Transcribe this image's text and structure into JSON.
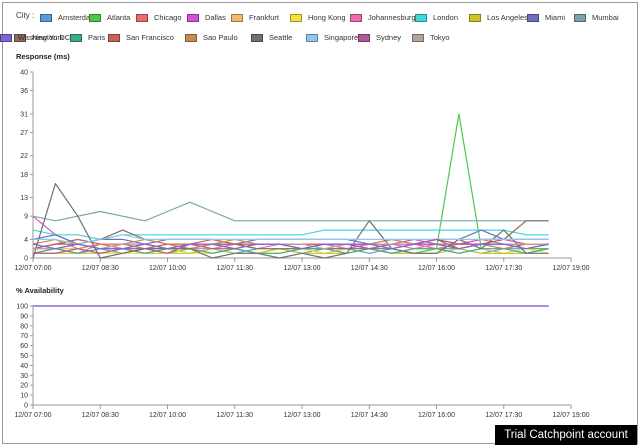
{
  "legend": {
    "label": "City :",
    "items": [
      {
        "name": "Amsterdam",
        "color": "#5b9bd5"
      },
      {
        "name": "Atlanta",
        "color": "#4cc94c"
      },
      {
        "name": "Chicago",
        "color": "#e86a6a"
      },
      {
        "name": "Dallas",
        "color": "#d24fcf"
      },
      {
        "name": "Frankfurt",
        "color": "#f2b86a"
      },
      {
        "name": "Hong Kong",
        "color": "#f5e33a"
      },
      {
        "name": "Johannesburg",
        "color": "#f06ab0"
      },
      {
        "name": "London",
        "color": "#3fd9d9"
      },
      {
        "name": "Los Angeles",
        "color": "#c9c526"
      },
      {
        "name": "Miami",
        "color": "#6b6fbf"
      },
      {
        "name": "Mumbai",
        "color": "#7aa3ad"
      },
      {
        "name": "New York",
        "color": "#8c6d5a"
      },
      {
        "name": "Paris",
        "color": "#3daa8e"
      },
      {
        "name": "San Francisco",
        "color": "#c9605a"
      },
      {
        "name": "Sao Paulo",
        "color": "#c98a4f"
      },
      {
        "name": "Seattle",
        "color": "#707070"
      },
      {
        "name": "Singapore",
        "color": "#8ec8e8"
      },
      {
        "name": "Sydney",
        "color": "#b3569c"
      },
      {
        "name": "Tokyo",
        "color": "#b8a39a"
      },
      {
        "name": "Washington DC",
        "color": "#7d63d6"
      }
    ]
  },
  "trial_banner": "Trial Catchpoint account",
  "chart_data": [
    {
      "type": "line",
      "title": "Response (ms)",
      "ylim": [
        0,
        40
      ],
      "yticks": [
        0,
        4,
        9,
        13,
        18,
        22,
        27,
        31,
        36,
        40
      ],
      "xlim": [
        "12/07 07:00",
        "12/07 19:00"
      ],
      "xticks": [
        "12/07 07:00",
        "12/07 08:30",
        "12/07 10:00",
        "12/07 11:30",
        "12/07 13:00",
        "12/07 14:30",
        "12/07 16:00",
        "12/07 17:30",
        "12/07 19:00"
      ],
      "x": [
        "07:00",
        "07:30",
        "08:00",
        "08:30",
        "09:00",
        "09:30",
        "10:00",
        "10:30",
        "11:00",
        "11:30",
        "12:00",
        "12:30",
        "13:00",
        "13:30",
        "14:00",
        "14:30",
        "15:00",
        "15:30",
        "16:00",
        "16:30",
        "17:00",
        "17:30",
        "18:00",
        "18:30"
      ],
      "series": [
        {
          "name": "Amsterdam",
          "values": [
            1,
            2,
            1,
            2,
            1,
            2,
            2,
            1,
            2,
            1,
            2,
            2,
            1,
            2,
            2,
            1,
            2,
            1,
            2,
            2,
            1,
            2,
            2,
            2
          ]
        },
        {
          "name": "Atlanta",
          "values": [
            1,
            1,
            2,
            1,
            1,
            2,
            1,
            2,
            1,
            2,
            1,
            2,
            2,
            3,
            3,
            2,
            1,
            1,
            2,
            31,
            2,
            1,
            2,
            2
          ]
        },
        {
          "name": "Chicago",
          "values": [
            2,
            3,
            4,
            3,
            2,
            3,
            2,
            3,
            3,
            2,
            3,
            3,
            2,
            3,
            3,
            2,
            3,
            3,
            2,
            3,
            4,
            3,
            3,
            3
          ]
        },
        {
          "name": "Dallas",
          "values": [
            9,
            5,
            3,
            2,
            3,
            3,
            2,
            3,
            3,
            3,
            3,
            3,
            3,
            3,
            2,
            3,
            3,
            4,
            3,
            3,
            4,
            4,
            3,
            3
          ]
        },
        {
          "name": "Frankfurt",
          "values": [
            1,
            2,
            2,
            1,
            2,
            1,
            2,
            2,
            1,
            2,
            1,
            2,
            2,
            1,
            2,
            2,
            1,
            2,
            2,
            1,
            2,
            1,
            1,
            2
          ]
        },
        {
          "name": "Hong Kong",
          "values": [
            1,
            1,
            2,
            1,
            1,
            1,
            2,
            1,
            1,
            2,
            1,
            1,
            2,
            1,
            1,
            2,
            1,
            1,
            1,
            2,
            1,
            1,
            2,
            1
          ]
        },
        {
          "name": "Johannesburg",
          "values": [
            2,
            2,
            1,
            3,
            2,
            2,
            3,
            2,
            2,
            3,
            2,
            3,
            3,
            3,
            2,
            3,
            3,
            2,
            3,
            3,
            3,
            2,
            3,
            3
          ]
        },
        {
          "name": "London",
          "values": [
            6,
            5,
            5,
            4,
            5,
            5,
            5,
            5,
            5,
            5,
            5,
            5,
            5,
            6,
            6,
            6,
            6,
            6,
            6,
            6,
            6,
            6,
            5,
            5
          ]
        },
        {
          "name": "Los Angeles",
          "values": [
            1,
            1,
            1,
            1,
            2,
            1,
            1,
            1,
            2,
            1,
            1,
            2,
            1,
            1,
            1,
            2,
            1,
            1,
            1,
            2,
            1,
            1,
            1,
            2
          ]
        },
        {
          "name": "Miami",
          "values": [
            4,
            5,
            3,
            4,
            4,
            3,
            4,
            4,
            4,
            3,
            4,
            4,
            4,
            4,
            4,
            3,
            4,
            3,
            4,
            4,
            6,
            4,
            4,
            4
          ]
        },
        {
          "name": "Mumbai",
          "values": [
            9,
            8,
            9,
            10,
            9,
            8,
            10,
            12,
            10,
            8,
            8,
            8,
            8,
            8,
            8,
            8,
            8,
            8,
            8,
            8,
            8,
            8,
            8,
            8
          ]
        },
        {
          "name": "New York",
          "values": [
            2,
            3,
            3,
            4,
            6,
            4,
            3,
            2,
            3,
            3,
            2,
            2,
            2,
            2,
            2,
            2,
            2,
            3,
            4,
            2,
            3,
            4,
            8,
            8
          ]
        },
        {
          "name": "Paris",
          "values": [
            1,
            2,
            1,
            2,
            2,
            1,
            2,
            2,
            1,
            2,
            1,
            1,
            2,
            2,
            1,
            2,
            1,
            2,
            2,
            1,
            2,
            2,
            1,
            2
          ]
        },
        {
          "name": "San Francisco",
          "values": [
            2,
            3,
            4,
            3,
            3,
            2,
            3,
            3,
            4,
            3,
            3,
            3,
            3,
            3,
            3,
            3,
            3,
            3,
            4,
            3,
            3,
            3,
            3,
            3
          ]
        },
        {
          "name": "Sao Paulo",
          "values": [
            3,
            4,
            2,
            3,
            3,
            4,
            3,
            2,
            3,
            4,
            3,
            3,
            2,
            3,
            3,
            3,
            4,
            3,
            3,
            3,
            3,
            2,
            3,
            3
          ]
        },
        {
          "name": "Seattle",
          "values": [
            0,
            16,
            9,
            0,
            1,
            2,
            2,
            2,
            0,
            1,
            1,
            0,
            1,
            0,
            1,
            8,
            2,
            1,
            1,
            4,
            2,
            6,
            1,
            1
          ]
        },
        {
          "name": "Singapore",
          "values": [
            4,
            4,
            3,
            4,
            5,
            4,
            4,
            4,
            4,
            4,
            4,
            4,
            4,
            4,
            4,
            4,
            4,
            4,
            4,
            4,
            4,
            4,
            4,
            4
          ]
        },
        {
          "name": "Sydney",
          "values": [
            1,
            1,
            2,
            1,
            2,
            2,
            1,
            3,
            2,
            2,
            3,
            3,
            2,
            3,
            3,
            2,
            3,
            3,
            4,
            3,
            3,
            3,
            2,
            3
          ]
        },
        {
          "name": "Tokyo",
          "values": [
            2,
            2,
            3,
            2,
            3,
            3,
            2,
            3,
            3,
            2,
            3,
            3,
            3,
            2,
            3,
            3,
            3,
            3,
            3,
            2,
            3,
            3,
            3,
            3
          ]
        },
        {
          "name": "Washington DC",
          "values": [
            3,
            2,
            3,
            2,
            2,
            3,
            2,
            3,
            3,
            2,
            3,
            3,
            2,
            3,
            3,
            3,
            2,
            3,
            3,
            2,
            3,
            3,
            2,
            3
          ]
        }
      ]
    },
    {
      "type": "line",
      "title": "% Availability",
      "ylim": [
        0,
        100
      ],
      "yticks": [
        0,
        10,
        20,
        30,
        40,
        50,
        60,
        70,
        80,
        90,
        100
      ],
      "xlim": [
        "12/07 07:00",
        "12/07 19:00"
      ],
      "xticks": [
        "12/07 07:00",
        "12/07 08:30",
        "12/07 10:00",
        "12/07 11:30",
        "12/07 13:00",
        "12/07 14:30",
        "12/07 16:00",
        "12/07 17:30",
        "12/07 19:00"
      ],
      "x": [
        "07:00",
        "18:30"
      ],
      "series": [
        {
          "name": "Dallas",
          "values": [
            100,
            100
          ]
        },
        {
          "name": "Washington DC",
          "values": [
            100,
            100
          ]
        }
      ]
    }
  ]
}
